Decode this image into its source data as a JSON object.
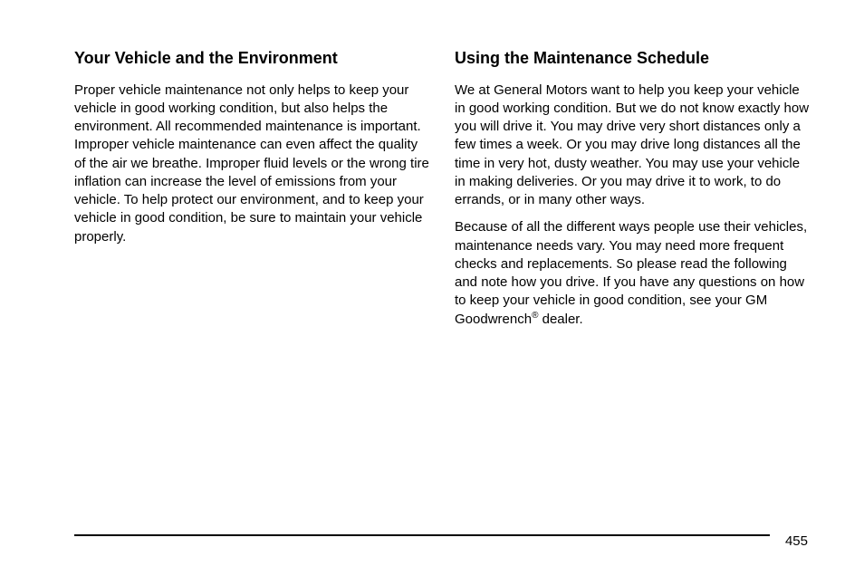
{
  "left_column": {
    "heading": "Your Vehicle and the Environment",
    "paragraph1": "Proper vehicle maintenance not only helps to keep your vehicle in good working condition, but also helps the environment. All recommended maintenance is important. Improper vehicle maintenance can even affect the quality of the air we breathe. Improper fluid levels or the wrong tire inflation can increase the level of emissions from your vehicle. To help protect our environment, and to keep your vehicle in good condition, be sure to maintain your vehicle properly."
  },
  "right_column": {
    "heading": "Using the Maintenance Schedule",
    "paragraph1": "We at General Motors want to help you keep your vehicle in good working condition. But we do not know exactly how you will drive it. You may drive very short distances only a few times a week. Or you may drive long distances all the time in very hot, dusty weather. You may use your vehicle in making deliveries. Or you may drive it to work, to do errands, or in many other ways.",
    "paragraph2_part1": "Because of all the different ways people use their vehicles, maintenance needs vary. You may need more frequent checks and replacements. So please read the following and note how you drive. If you have any questions on how to keep your vehicle in good condition, see your GM Goodwrench",
    "paragraph2_sup": "®",
    "paragraph2_part2": " dealer."
  },
  "page_number": "455"
}
